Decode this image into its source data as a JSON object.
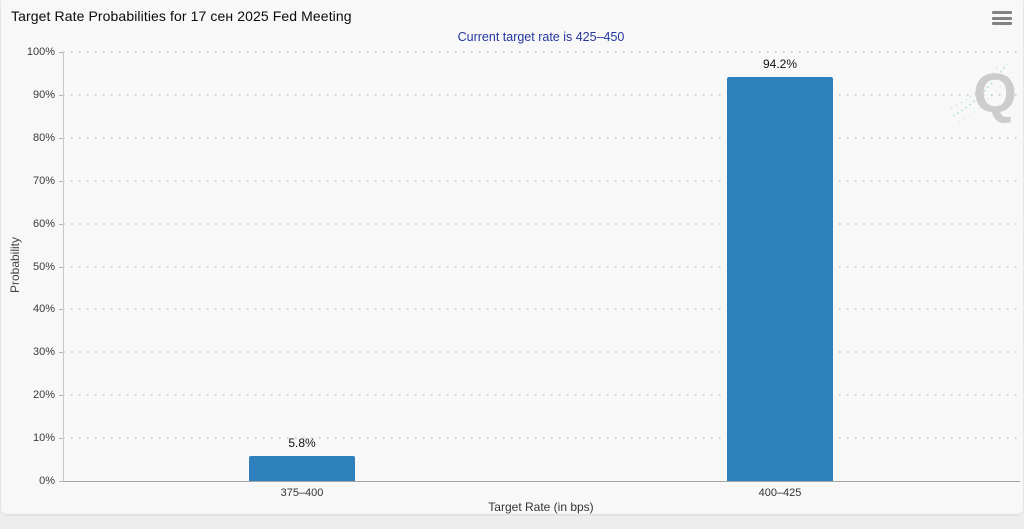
{
  "menu": {
    "icon": "hamburger-icon"
  },
  "watermark": {
    "letter": "Q"
  },
  "chart_data": {
    "type": "bar",
    "title": "Target Rate Probabilities for 17 сен 2025 Fed Meeting",
    "subtitle": "Current target rate is 425–450",
    "categories": [
      "375–400",
      "400–425"
    ],
    "values": [
      5.8,
      94.2
    ],
    "value_labels": [
      "5.8%",
      "94.2%"
    ],
    "xlabel": "Target Rate (in bps)",
    "ylabel": "Probability",
    "ylim": [
      0,
      100
    ],
    "yticks": [
      0,
      10,
      20,
      30,
      40,
      50,
      60,
      70,
      80,
      90,
      100
    ],
    "ytick_labels": [
      "0%",
      "10%",
      "20%",
      "30%",
      "40%",
      "50%",
      "60%",
      "70%",
      "80%",
      "90%",
      "100%"
    ],
    "grid": "horizontal-dotted",
    "legend": null,
    "bar_color": "#2e80bd",
    "subtitle_color": "#23379e"
  }
}
